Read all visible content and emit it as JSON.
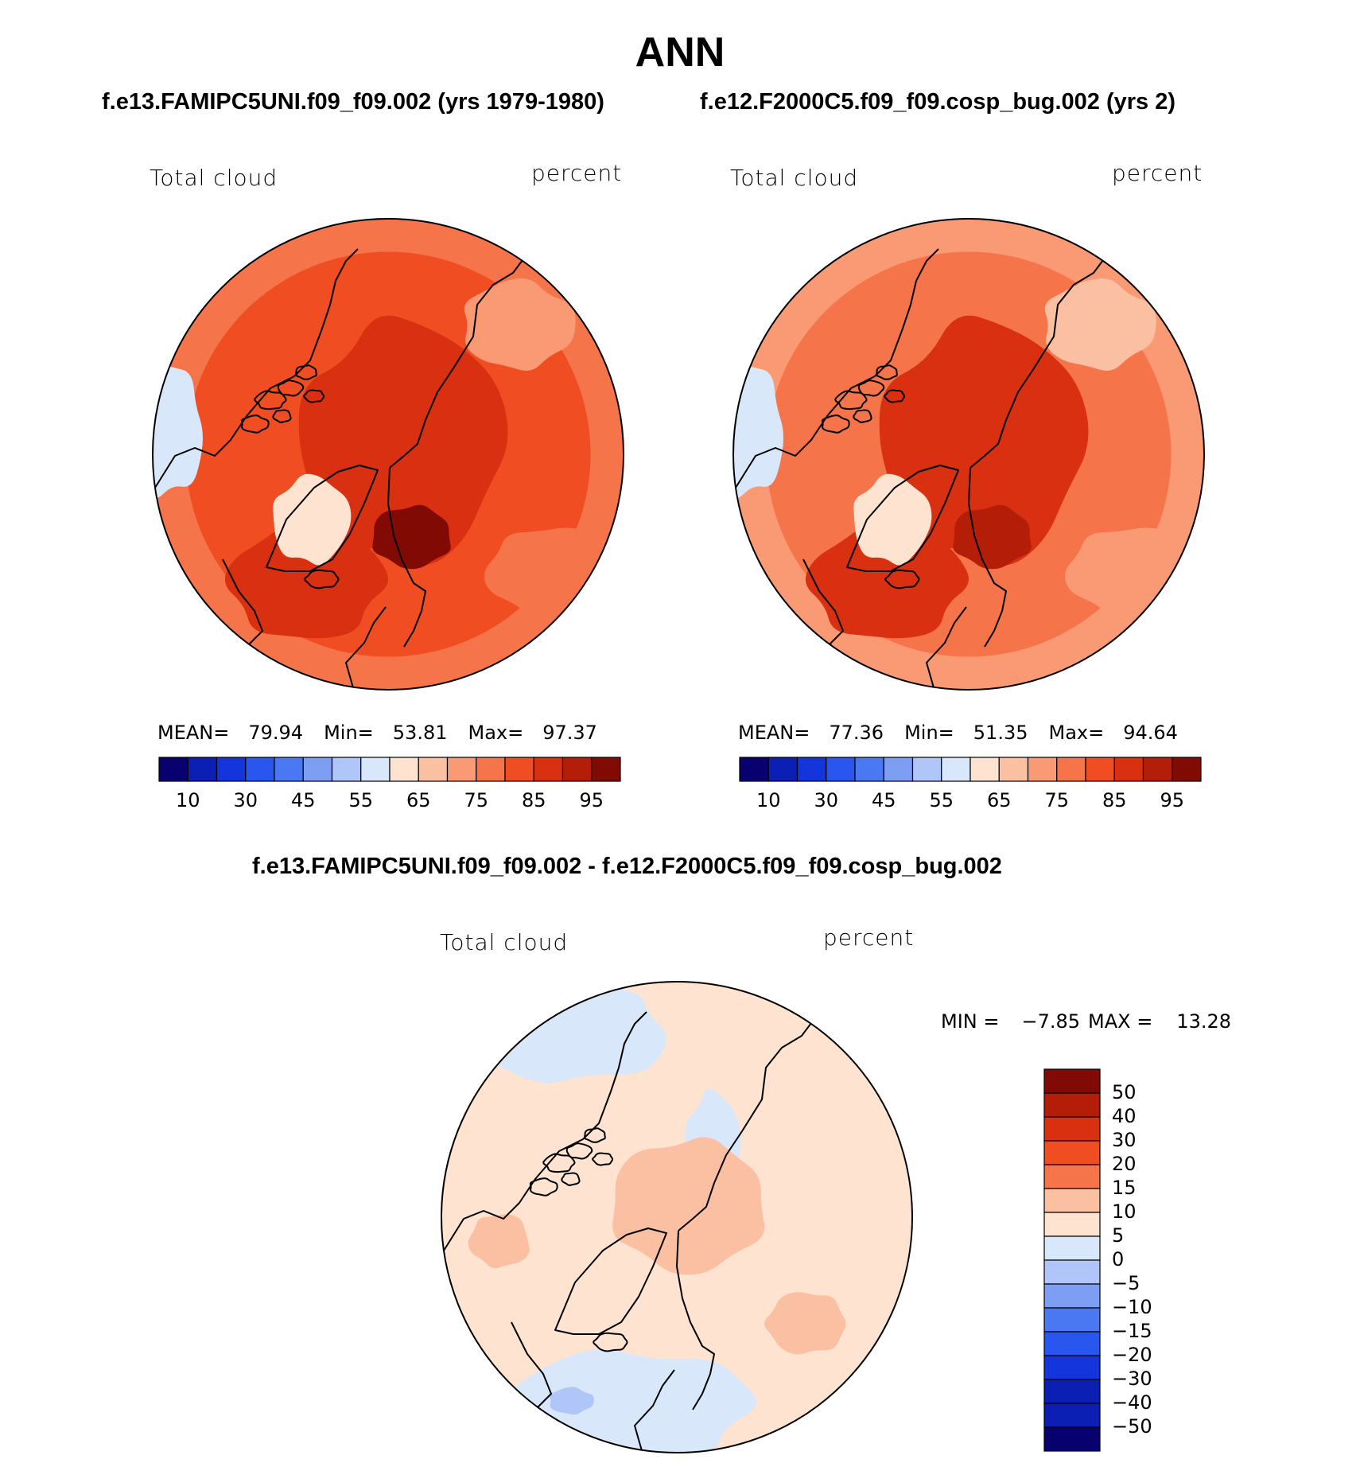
{
  "title": "ANN",
  "chart_data": [
    {
      "type": "heatmap",
      "projection": "polar-stereographic (north)",
      "case_title": "f.e13.FAMIPC5UNI.f09_f09.002 (yrs 1979-1980)",
      "left_label": "Total cloud",
      "right_label": "percent",
      "stats": {
        "mean_label": "MEAN=",
        "mean": "79.94",
        "min_label": "Min=",
        "min": "53.81",
        "max_label": "Max=",
        "max": "97.37"
      },
      "colorbar": {
        "colors": [
          "#08006e",
          "#0c1fb4",
          "#1434dc",
          "#2a56f0",
          "#4a78f2",
          "#7e9ef4",
          "#b0c6f8",
          "#d8e8fa",
          "#fde3d0",
          "#fbc0a2",
          "#f99a74",
          "#f6744a",
          "#f04e22",
          "#d83010",
          "#b41e08",
          "#820a04"
        ],
        "tick_labels": [
          "10",
          "30",
          "45",
          "55",
          "65",
          "75",
          "85",
          "95"
        ]
      },
      "field": {
        "ocean_level_index": 12,
        "pole_level_index": 13,
        "max_level_index": 15,
        "greenland_level_index": 8
      }
    },
    {
      "type": "heatmap",
      "projection": "polar-stereographic (north)",
      "case_title": "f.e12.F2000C5.f09_f09.cosp_bug.002 (yrs 2)",
      "left_label": "Total cloud",
      "right_label": "percent",
      "stats": {
        "mean_label": "MEAN=",
        "mean": "77.36",
        "min_label": "Min=",
        "min": "51.35",
        "max_label": "Max=",
        "max": "94.64"
      },
      "colorbar": {
        "colors": [
          "#08006e",
          "#0c1fb4",
          "#1434dc",
          "#2a56f0",
          "#4a78f2",
          "#7e9ef4",
          "#b0c6f8",
          "#d8e8fa",
          "#fde3d0",
          "#fbc0a2",
          "#f99a74",
          "#f6744a",
          "#f04e22",
          "#d83010",
          "#b41e08",
          "#820a04"
        ],
        "tick_labels": [
          "10",
          "30",
          "45",
          "55",
          "65",
          "75",
          "85",
          "95"
        ]
      },
      "field": {
        "ocean_level_index": 11,
        "pole_level_index": 13,
        "max_level_index": 14,
        "greenland_level_index": 8
      }
    },
    {
      "type": "heatmap",
      "projection": "polar-stereographic (north)",
      "case_title": "f.e13.FAMIPC5UNI.f09_f09.002 - f.e12.F2000C5.f09_f09.cosp_bug.002",
      "left_label": "Total cloud",
      "right_label": "percent",
      "stats": {
        "min_label": "MIN =",
        "min": "−7.85",
        "max_label": "MAX =",
        "max": "13.28"
      },
      "colorbar": {
        "colors_top_to_bottom": [
          "#820a04",
          "#b41e08",
          "#d83010",
          "#f04e22",
          "#f6744a",
          "#fbc0a2",
          "#fde3d0",
          "#d8e8fa",
          "#b0c6f8",
          "#7e9ef4",
          "#4a78f2",
          "#2a56f0",
          "#1434dc",
          "#0c1fb4",
          "#0c1fb4",
          "#08006e"
        ],
        "tick_labels_top_to_bottom": [
          "50",
          "40",
          "30",
          "20",
          "15",
          "10",
          "5",
          "0",
          "−5",
          "−10",
          "−15",
          "−20",
          "−30",
          "−40",
          "−50"
        ]
      },
      "field": {
        "background_color": "#fde3d0",
        "positive_patch_color": "#fbc0a2",
        "negative_patch_color": "#d8e8fa",
        "strong_negative_color": "#b0c6f8"
      }
    }
  ]
}
